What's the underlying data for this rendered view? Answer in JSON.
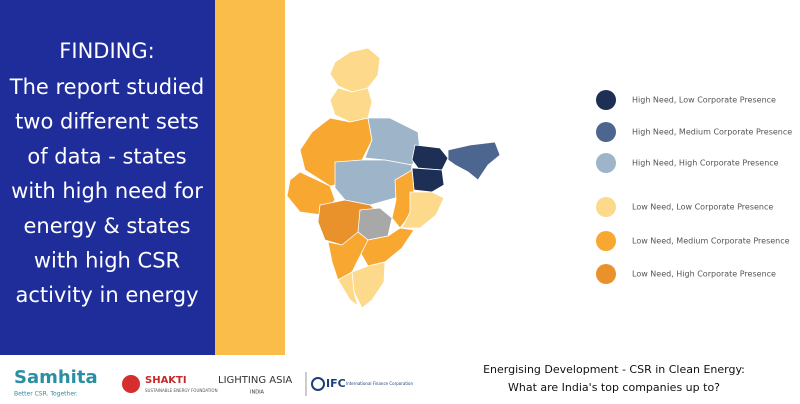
{
  "left_panel": {
    "heading": "FINDING:",
    "lines": [
      "The report studied",
      "two different sets",
      "of data - states",
      "with high need for",
      "energy & states",
      "with high CSR",
      "activity in energy"
    ]
  },
  "legend": {
    "items": [
      {
        "label": "High Need, Low Corporate Presence",
        "color": "#1e2f55"
      },
      {
        "label": "High Need, Medium Corporate Presence",
        "color": "#4d6690"
      },
      {
        "label": "High Need, High Corporate Presence",
        "color": "#9db4c9"
      },
      {
        "label": "Low Need, Low Corporate Presence",
        "color": "#fdd98b"
      },
      {
        "label": "Low Need, Medium Corporate Presence",
        "color": "#f8a731"
      },
      {
        "label": "Low Need, High Corporate Presence",
        "color": "#e9922c"
      }
    ]
  },
  "footer": {
    "logos": {
      "samhita": "Samhita",
      "samhita_tagline": "Better CSR. Together.",
      "shakti": "SHAKTI",
      "shakti_sub": "SUSTAINABLE ENERGY FOUNDATION",
      "lighting_asia": "LIGHTING ASIA",
      "lighting_asia_sub": "INDIA",
      "ifc": "IFC",
      "ifc_sub": "International Finance Corporation"
    },
    "caption": [
      "Energising Development - CSR in Clean Energy:",
      "What are India's top companies up to?"
    ]
  }
}
